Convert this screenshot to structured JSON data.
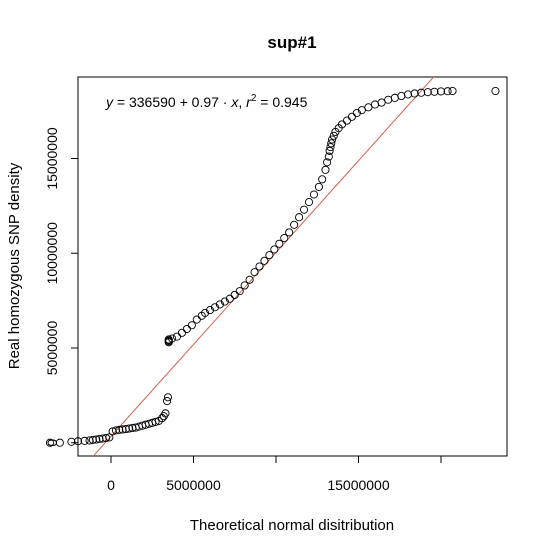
{
  "chart_data": {
    "type": "scatter",
    "title": "sup#1",
    "xlabel": "Theoretical normal disitribution",
    "ylabel": "Real homozygous SNP density",
    "xlim": [
      -2000000,
      24000000
    ],
    "ylim": [
      -700000,
      19300000
    ],
    "x_ticks": [
      0,
      5000000,
      10000000,
      15000000,
      20000000
    ],
    "x_tick_labels": [
      "0",
      "5000000",
      "",
      "15000000",
      ""
    ],
    "y_ticks": [
      0,
      5000000,
      10000000,
      15000000
    ],
    "y_tick_labels": [
      "0",
      "5000000",
      "10000000",
      "15000000"
    ],
    "annotation": {
      "y_var": "y",
      "equals": " = ",
      "intercept": "336590",
      "plus": " + ",
      "slope": "0.97",
      "dot": " · ",
      "x_var": "x",
      "comma": ",  ",
      "r_var": "r",
      "r_exp": "2",
      "r2_value": " = 0.945"
    },
    "fit_line": {
      "intercept": 336590,
      "slope": 0.97,
      "color": "#d45f4e"
    },
    "marker": {
      "shape": "open-circle",
      "color": "#000000"
    },
    "series": [
      {
        "x": [
          -3700000,
          -3100000,
          -2400000,
          -2000000,
          -1600000,
          -1300000,
          -1100000,
          -900000,
          -700000,
          -500000,
          -300000,
          -100000,
          100000,
          300000,
          500000,
          700000,
          900000,
          1100000,
          1300000,
          1500000,
          1700000,
          1900000,
          2100000,
          2300000,
          2500000,
          2700000,
          2900000,
          3100000,
          3200000,
          3300000,
          3400000,
          3450000,
          3500000,
          3500000,
          3500000,
          3500000,
          3700000,
          4000000,
          4300000,
          4600000,
          4900000,
          5200000,
          5500000,
          5700000,
          6000000,
          6300000,
          6600000,
          6900000,
          7200000,
          7500000,
          7800000,
          8100000,
          8400000,
          8700000,
          9000000,
          9300000,
          9600000,
          9900000,
          10200000,
          10500000,
          10800000,
          11100000,
          11400000,
          11700000,
          12000000,
          12300000,
          12600000,
          12800000,
          13000000,
          13100000,
          13200000,
          13250000,
          13300000,
          13350000,
          13400000,
          13500000,
          13600000,
          13800000,
          14000000,
          14300000,
          14600000,
          14900000,
          15200000,
          15600000,
          16000000,
          16400000,
          16800000,
          17200000,
          17600000,
          18000000,
          18400000,
          18800000,
          19200000,
          19600000,
          20000000,
          20400000,
          20700000,
          23300000
        ],
        "y": [
          0,
          0,
          50000,
          80000,
          100000,
          120000,
          150000,
          170000,
          200000,
          220000,
          250000,
          280000,
          600000,
          650000,
          680000,
          700000,
          720000,
          750000,
          780000,
          800000,
          850000,
          900000,
          950000,
          1000000,
          1050000,
          1100000,
          1150000,
          1300000,
          1400000,
          1550000,
          2200000,
          2400000,
          5300000,
          5350000,
          5400000,
          5450000,
          5500000,
          5600000,
          5800000,
          6000000,
          6200000,
          6500000,
          6700000,
          6850000,
          7000000,
          7150000,
          7300000,
          7450000,
          7600000,
          7800000,
          8000000,
          8300000,
          8600000,
          9000000,
          9300000,
          9600000,
          9900000,
          10200000,
          10500000,
          10800000,
          11100000,
          11500000,
          11900000,
          12300000,
          12700000,
          13100000,
          13500000,
          13900000,
          14400000,
          14800000,
          15100000,
          15400000,
          15600000,
          15800000,
          16000000,
          16200000,
          16400000,
          16600000,
          16800000,
          17000000,
          17200000,
          17400000,
          17550000,
          17700000,
          17850000,
          17950000,
          18100000,
          18200000,
          18300000,
          18380000,
          18430000,
          18470000,
          18500000,
          18520000,
          18540000,
          18550000,
          18560000,
          18560000
        ]
      }
    ]
  }
}
